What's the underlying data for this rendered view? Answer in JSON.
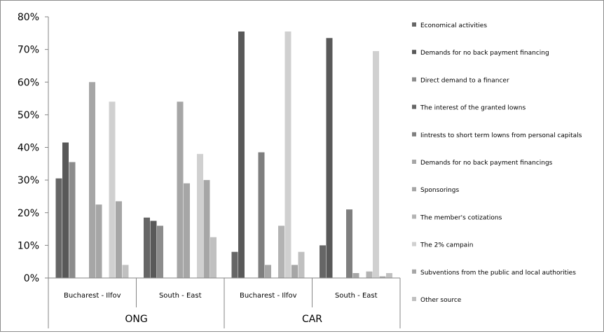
{
  "chart_data": {
    "type": "bar",
    "ylim": [
      0,
      80
    ],
    "yticks": [
      "0%",
      "10%",
      "20%",
      "30%",
      "40%",
      "50%",
      "60%",
      "70%",
      "80%"
    ],
    "groups": [
      "ONG",
      "CAR"
    ],
    "categories": [
      "Bucharest - Ilfov",
      "South - East",
      "Bucharest - Ilfov",
      "South - East"
    ],
    "legend_position": "right",
    "series": [
      {
        "name": "Economical activities",
        "color": "#666666",
        "values": [
          30.5,
          18.5,
          8,
          10
        ]
      },
      {
        "name": "Demands for no back payment financing",
        "color": "#595959",
        "values": [
          41.5,
          17.5,
          75.5,
          73.5
        ]
      },
      {
        "name": "Direct demand to a financer",
        "color": "#8c8c8c",
        "values": [
          35.5,
          16,
          0,
          0
        ]
      },
      {
        "name": "The interest of the granted lowns",
        "color": "#666666",
        "values": [
          0,
          0,
          0,
          0
        ]
      },
      {
        "name": "Iintrests to short term lowns from personal capitals",
        "color": "#7f7f7f",
        "values": [
          0,
          0,
          38.5,
          21
        ]
      },
      {
        "name": "Demands for no back payment financings",
        "color": "#a6a6a6",
        "values": [
          60,
          54,
          4,
          1.5
        ]
      },
      {
        "name": "Sponsorings",
        "color": "#a6a6a6",
        "values": [
          22.5,
          29,
          0,
          0
        ]
      },
      {
        "name": "The member's cotizations",
        "color": "#b3b3b3",
        "values": [
          0,
          0,
          16,
          2
        ]
      },
      {
        "name": "The 2% campain",
        "color": "#d0d0d0",
        "values": [
          54,
          38,
          75.5,
          69.5
        ]
      },
      {
        "name": "Subventions from the public and local authorities",
        "color": "#a6a6a6",
        "values": [
          23.5,
          30,
          4,
          0.5
        ]
      },
      {
        "name": "Other source",
        "color": "#c0c0c0",
        "values": [
          4,
          12.5,
          8,
          1.5
        ]
      }
    ]
  }
}
